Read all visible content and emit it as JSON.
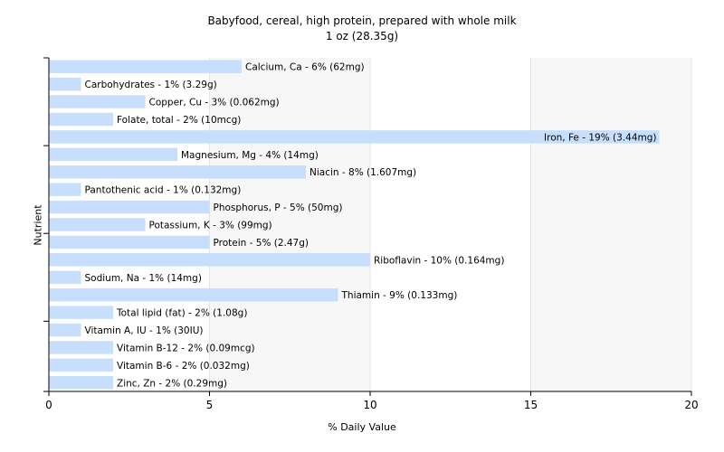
{
  "chart_data": {
    "type": "bar",
    "orientation": "horizontal",
    "title": "Babyfood, cereal, high protein, prepared with whole milk",
    "subtitle": "1 oz (28.35g)",
    "xlabel": "% Daily Value",
    "ylabel": "Nutrient",
    "xlim": [
      0,
      20
    ],
    "xticks": [
      "0",
      "5",
      "10",
      "15",
      "20"
    ],
    "grid": true,
    "bar_color": "#c7dffc",
    "categories": [
      "Calcium, Ca",
      "Carbohydrates",
      "Copper, Cu",
      "Folate, total",
      "Iron, Fe",
      "Magnesium, Mg",
      "Niacin",
      "Pantothenic acid",
      "Phosphorus, P",
      "Potassium, K",
      "Protein",
      "Riboflavin",
      "Sodium, Na",
      "Thiamin",
      "Total lipid (fat)",
      "Vitamin A, IU",
      "Vitamin B-12",
      "Vitamin B-6",
      "Zinc, Zn"
    ],
    "values": [
      6,
      1,
      3,
      2,
      19,
      4,
      8,
      1,
      5,
      3,
      5,
      10,
      1,
      9,
      2,
      1,
      2,
      2,
      2
    ],
    "labels": [
      "Calcium, Ca - 6% (62mg)",
      "Carbohydrates - 1% (3.29g)",
      "Copper, Cu - 3% (0.062mg)",
      "Folate, total - 2% (10mcg)",
      "Iron, Fe - 19% (3.44mg)",
      "Magnesium, Mg - 4% (14mg)",
      "Niacin - 8% (1.607mg)",
      "Pantothenic acid - 1% (0.132mg)",
      "Phosphorus, P - 5% (50mg)",
      "Potassium, K - 3% (99mg)",
      "Protein - 5% (2.47g)",
      "Riboflavin - 10% (0.164mg)",
      "Sodium, Na - 1% (14mg)",
      "Thiamin - 9% (0.133mg)",
      "Total lipid (fat) - 2% (1.08g)",
      "Vitamin A, IU - 1% (30IU)",
      "Vitamin B-12 - 2% (0.09mcg)",
      "Vitamin B-6 - 2% (0.032mg)",
      "Zinc, Zn - 2% (0.29mg)"
    ]
  }
}
